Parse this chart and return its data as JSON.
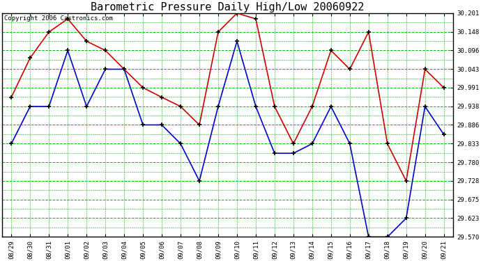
{
  "title": "Barometric Pressure Daily High/Low 20060922",
  "copyright": "Copyright 2006 Castronics.com",
  "dates": [
    "08/29",
    "08/30",
    "08/31",
    "09/01",
    "09/02",
    "09/03",
    "09/04",
    "09/05",
    "09/06",
    "09/07",
    "09/08",
    "09/09",
    "09/10",
    "09/11",
    "09/12",
    "09/13",
    "09/14",
    "09/15",
    "09/16",
    "09/17",
    "09/18",
    "09/19",
    "09/20",
    "09/21"
  ],
  "high": [
    29.964,
    30.075,
    30.148,
    30.185,
    30.122,
    30.096,
    30.043,
    29.991,
    29.964,
    29.938,
    29.886,
    30.148,
    30.201,
    30.185,
    29.938,
    29.833,
    29.938,
    30.096,
    30.043,
    30.148,
    29.833,
    29.728,
    30.043,
    29.991
  ],
  "low": [
    29.833,
    29.938,
    29.938,
    30.096,
    29.938,
    30.043,
    30.043,
    29.886,
    29.886,
    29.833,
    29.728,
    29.938,
    30.122,
    29.938,
    29.806,
    29.806,
    29.833,
    29.938,
    29.833,
    29.57,
    29.57,
    29.623,
    29.938,
    29.859
  ],
  "ylim_min": 29.57,
  "ylim_max": 30.201,
  "yticks": [
    29.57,
    29.623,
    29.675,
    29.728,
    29.78,
    29.833,
    29.886,
    29.938,
    29.991,
    30.043,
    30.096,
    30.148,
    30.201
  ],
  "high_color": "#cc0000",
  "low_color": "#0000cc",
  "bg_color": "#ffffff",
  "grid_major_color": "#00bb00",
  "grid_minor_color": "#aaffaa",
  "title_fontsize": 11,
  "copyright_fontsize": 6.5,
  "line_width": 1.2,
  "marker_size": 4
}
